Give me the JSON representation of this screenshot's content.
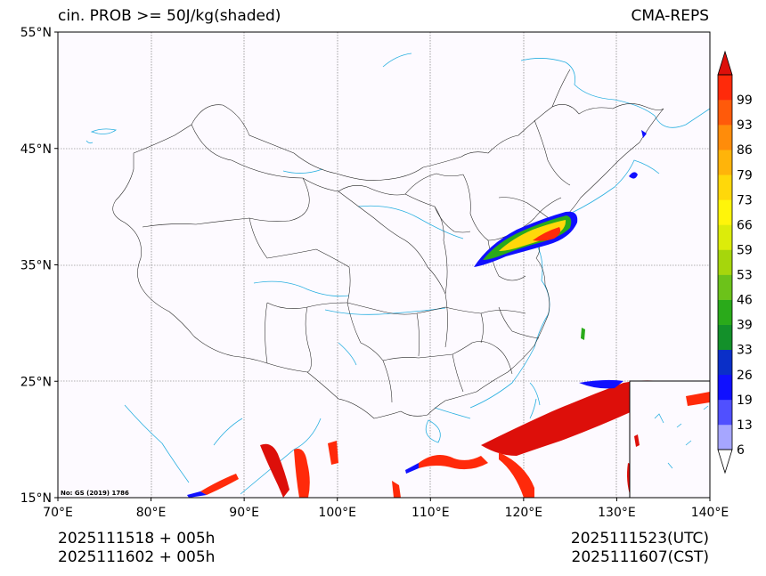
{
  "header": {
    "title_left": "cin. PROB >= 50J/kg(shaded)",
    "title_right": "CMA-REPS"
  },
  "axes": {
    "lat_labels": [
      "55°N",
      "45°N",
      "35°N",
      "25°N",
      "15°N"
    ],
    "lon_labels": [
      "70°E",
      "80°E",
      "90°E",
      "100°E",
      "110°E",
      "120°E",
      "130°E",
      "140°E"
    ]
  },
  "map": {
    "extent": {
      "lon_min": 70,
      "lon_max": 140,
      "lat_min": 15,
      "lat_max": 55
    },
    "gridlines": true,
    "watermark": "No: GS (2019) 1786",
    "inset": "South China Sea islands"
  },
  "colorbar": {
    "labels": [
      "6",
      "13",
      "19",
      "26",
      "33",
      "39",
      "46",
      "53",
      "59",
      "66",
      "73",
      "79",
      "86",
      "93",
      "99"
    ],
    "colors": [
      "#a6a6ff",
      "#5050ff",
      "#1010ff",
      "#0a2fc8",
      "#13902a",
      "#2aaa1a",
      "#6cc21a",
      "#a6d60c",
      "#dcec0a",
      "#fff50a",
      "#ffd80a",
      "#ffb40a",
      "#ff8c0a",
      "#ff5a0a",
      "#ff2a0a",
      "#dd0f0a"
    ],
    "under_color": "#ffffff",
    "over_color": "#dd0f0a"
  },
  "footer": {
    "left_line1": "2025111518  +  005h",
    "left_line2": "2025111602  +  005h",
    "right_line1": "2025111523(UTC)",
    "right_line2": "2025111607(CST)"
  }
}
